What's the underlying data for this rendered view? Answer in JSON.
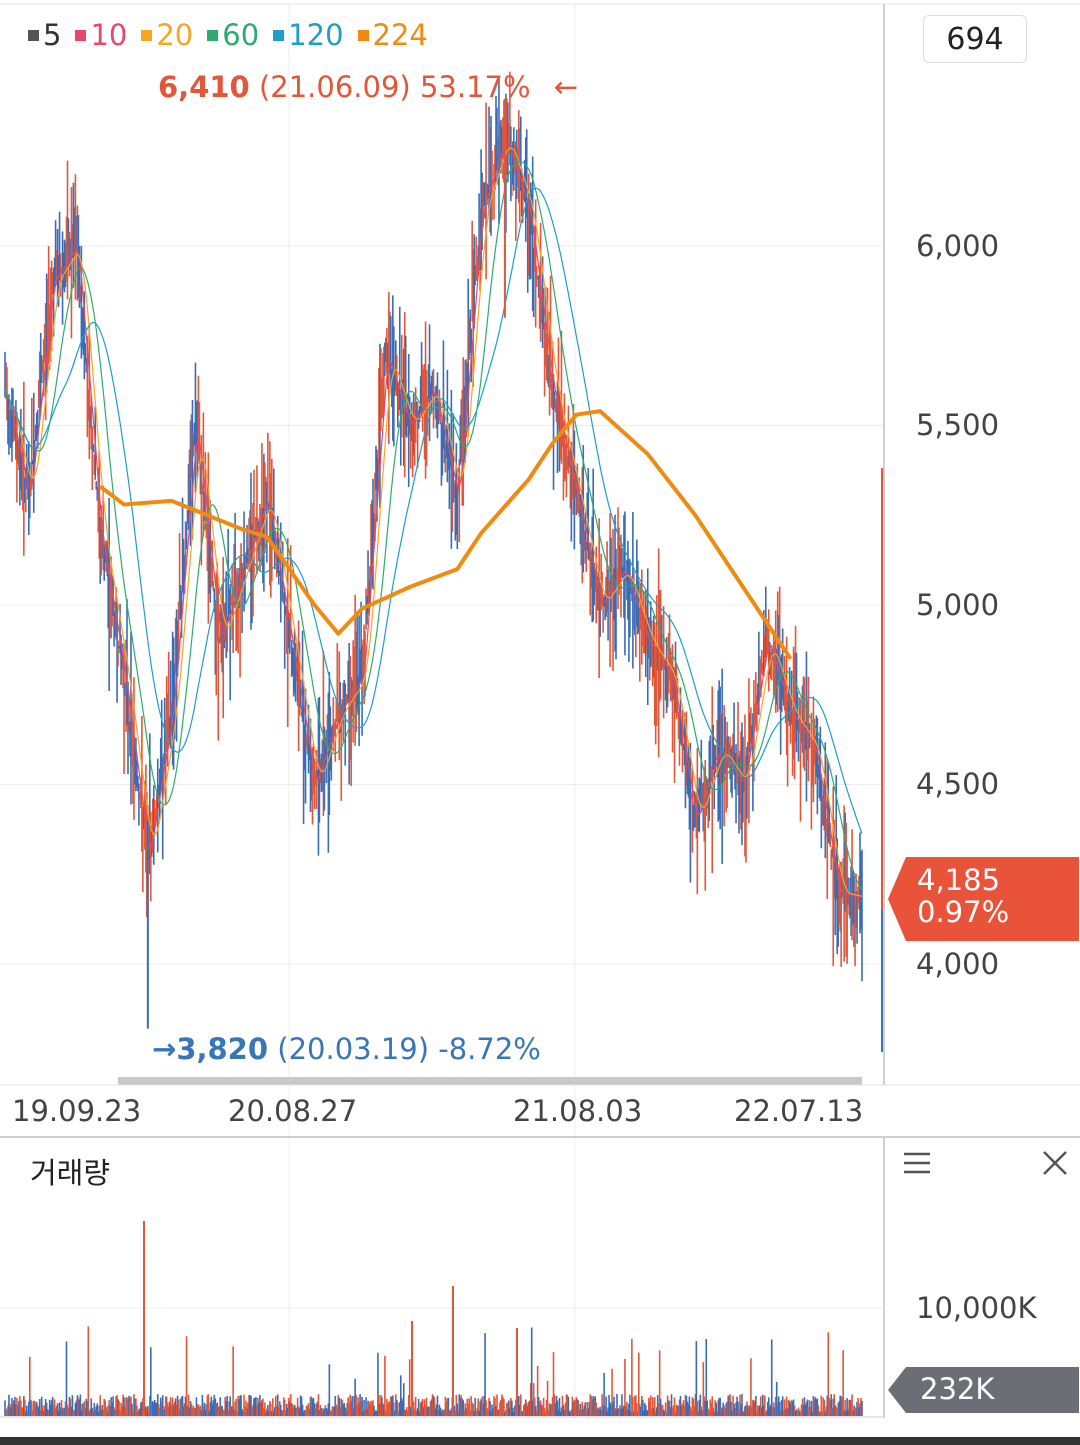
{
  "legend": [
    {
      "label": "5",
      "color": "#555555"
    },
    {
      "label": "10",
      "color": "#e8476a"
    },
    {
      "label": "20",
      "color": "#f5a623"
    },
    {
      "label": "60",
      "color": "#2eab6f"
    },
    {
      "label": "120",
      "color": "#1e9ec9"
    },
    {
      "label": "224",
      "color": "#f08a10"
    }
  ],
  "count_box": "694",
  "high_marker": {
    "price": "6,410",
    "date": "(21.06.09)",
    "change": "53.17%",
    "arrow": "←"
  },
  "low_marker": {
    "arrow": "→",
    "price": "3,820",
    "date": "(20.03.19)",
    "change": "-8.72%"
  },
  "current_price": {
    "value": "4,185",
    "change": "0.97%"
  },
  "volume_panel": {
    "title": "거래량",
    "last_value": "232K",
    "tick": "10,000K"
  },
  "icons": {
    "menu": "menu-icon",
    "close": "close-icon"
  },
  "colors": {
    "up": "#e0573a",
    "down": "#3a6cb5",
    "price_tag": "#e8533a",
    "volume_tag": "#6b6f75"
  },
  "chart_data": {
    "type": "line",
    "series_kind": "candlestick price with moving averages",
    "x_tick_labels": [
      "19.09.23",
      "20.08.27",
      "21.08.03",
      "22.07.13"
    ],
    "y_tick_labels": [
      "6,000",
      "5,500",
      "5,000",
      "4,500",
      "4,000"
    ],
    "y_ticks": [
      6000,
      5500,
      5000,
      4500,
      4000
    ],
    "ylim": [
      3700,
      6700
    ],
    "grid": true,
    "price_path": [
      [
        "19.09.23",
        5600
      ],
      [
        "19.10",
        5300
      ],
      [
        "19.11",
        5900
      ],
      [
        "19.12",
        6000
      ],
      [
        "20.01",
        5200
      ],
      [
        "20.02",
        4800
      ],
      [
        "20.03.19",
        4300
      ],
      [
        "20.04",
        4700
      ],
      [
        "20.05",
        5500
      ],
      [
        "20.06",
        4900
      ],
      [
        "20.07",
        5100
      ],
      [
        "20.08.27",
        5300
      ],
      [
        "20.09",
        4900
      ],
      [
        "20.10",
        4500
      ],
      [
        "20.11",
        4700
      ],
      [
        "20.12",
        4800
      ],
      [
        "21.01",
        5700
      ],
      [
        "21.02",
        5500
      ],
      [
        "21.03",
        5600
      ],
      [
        "21.04",
        5300
      ],
      [
        "21.05",
        6100
      ],
      [
        "21.06.09",
        6300
      ],
      [
        "21.07",
        6100
      ],
      [
        "21.08.03",
        5600
      ],
      [
        "21.09",
        5300
      ],
      [
        "21.10",
        5000
      ],
      [
        "21.11",
        5100
      ],
      [
        "21.12",
        4900
      ],
      [
        "22.01",
        4800
      ],
      [
        "22.02",
        4400
      ],
      [
        "22.03",
        4600
      ],
      [
        "22.04",
        4500
      ],
      [
        "22.05",
        4900
      ],
      [
        "22.06",
        4700
      ],
      [
        "22.07.13",
        4600
      ],
      [
        "22.08",
        4200
      ],
      [
        "22.09",
        4185
      ]
    ],
    "ma224_path": [
      [
        "20.01",
        5330
      ],
      [
        "20.02",
        5280
      ],
      [
        "20.04",
        5290
      ],
      [
        "20.07",
        5210
      ],
      [
        "20.08.27",
        5190
      ],
      [
        "20.10",
        5000
      ],
      [
        "20.11",
        4920
      ],
      [
        "20.12",
        4990
      ],
      [
        "21.02",
        5050
      ],
      [
        "21.04",
        5100
      ],
      [
        "21.05",
        5200
      ],
      [
        "21.07",
        5350
      ],
      [
        "21.08.03",
        5450
      ],
      [
        "21.09",
        5530
      ],
      [
        "21.10",
        5540
      ],
      [
        "21.12",
        5420
      ],
      [
        "22.02",
        5250
      ],
      [
        "22.04",
        5050
      ],
      [
        "22.06",
        4850
      ]
    ],
    "high": {
      "value": 6410,
      "date": "21.06.09"
    },
    "low": {
      "value": 3820,
      "date": "20.03.19"
    },
    "current": 4185
  }
}
